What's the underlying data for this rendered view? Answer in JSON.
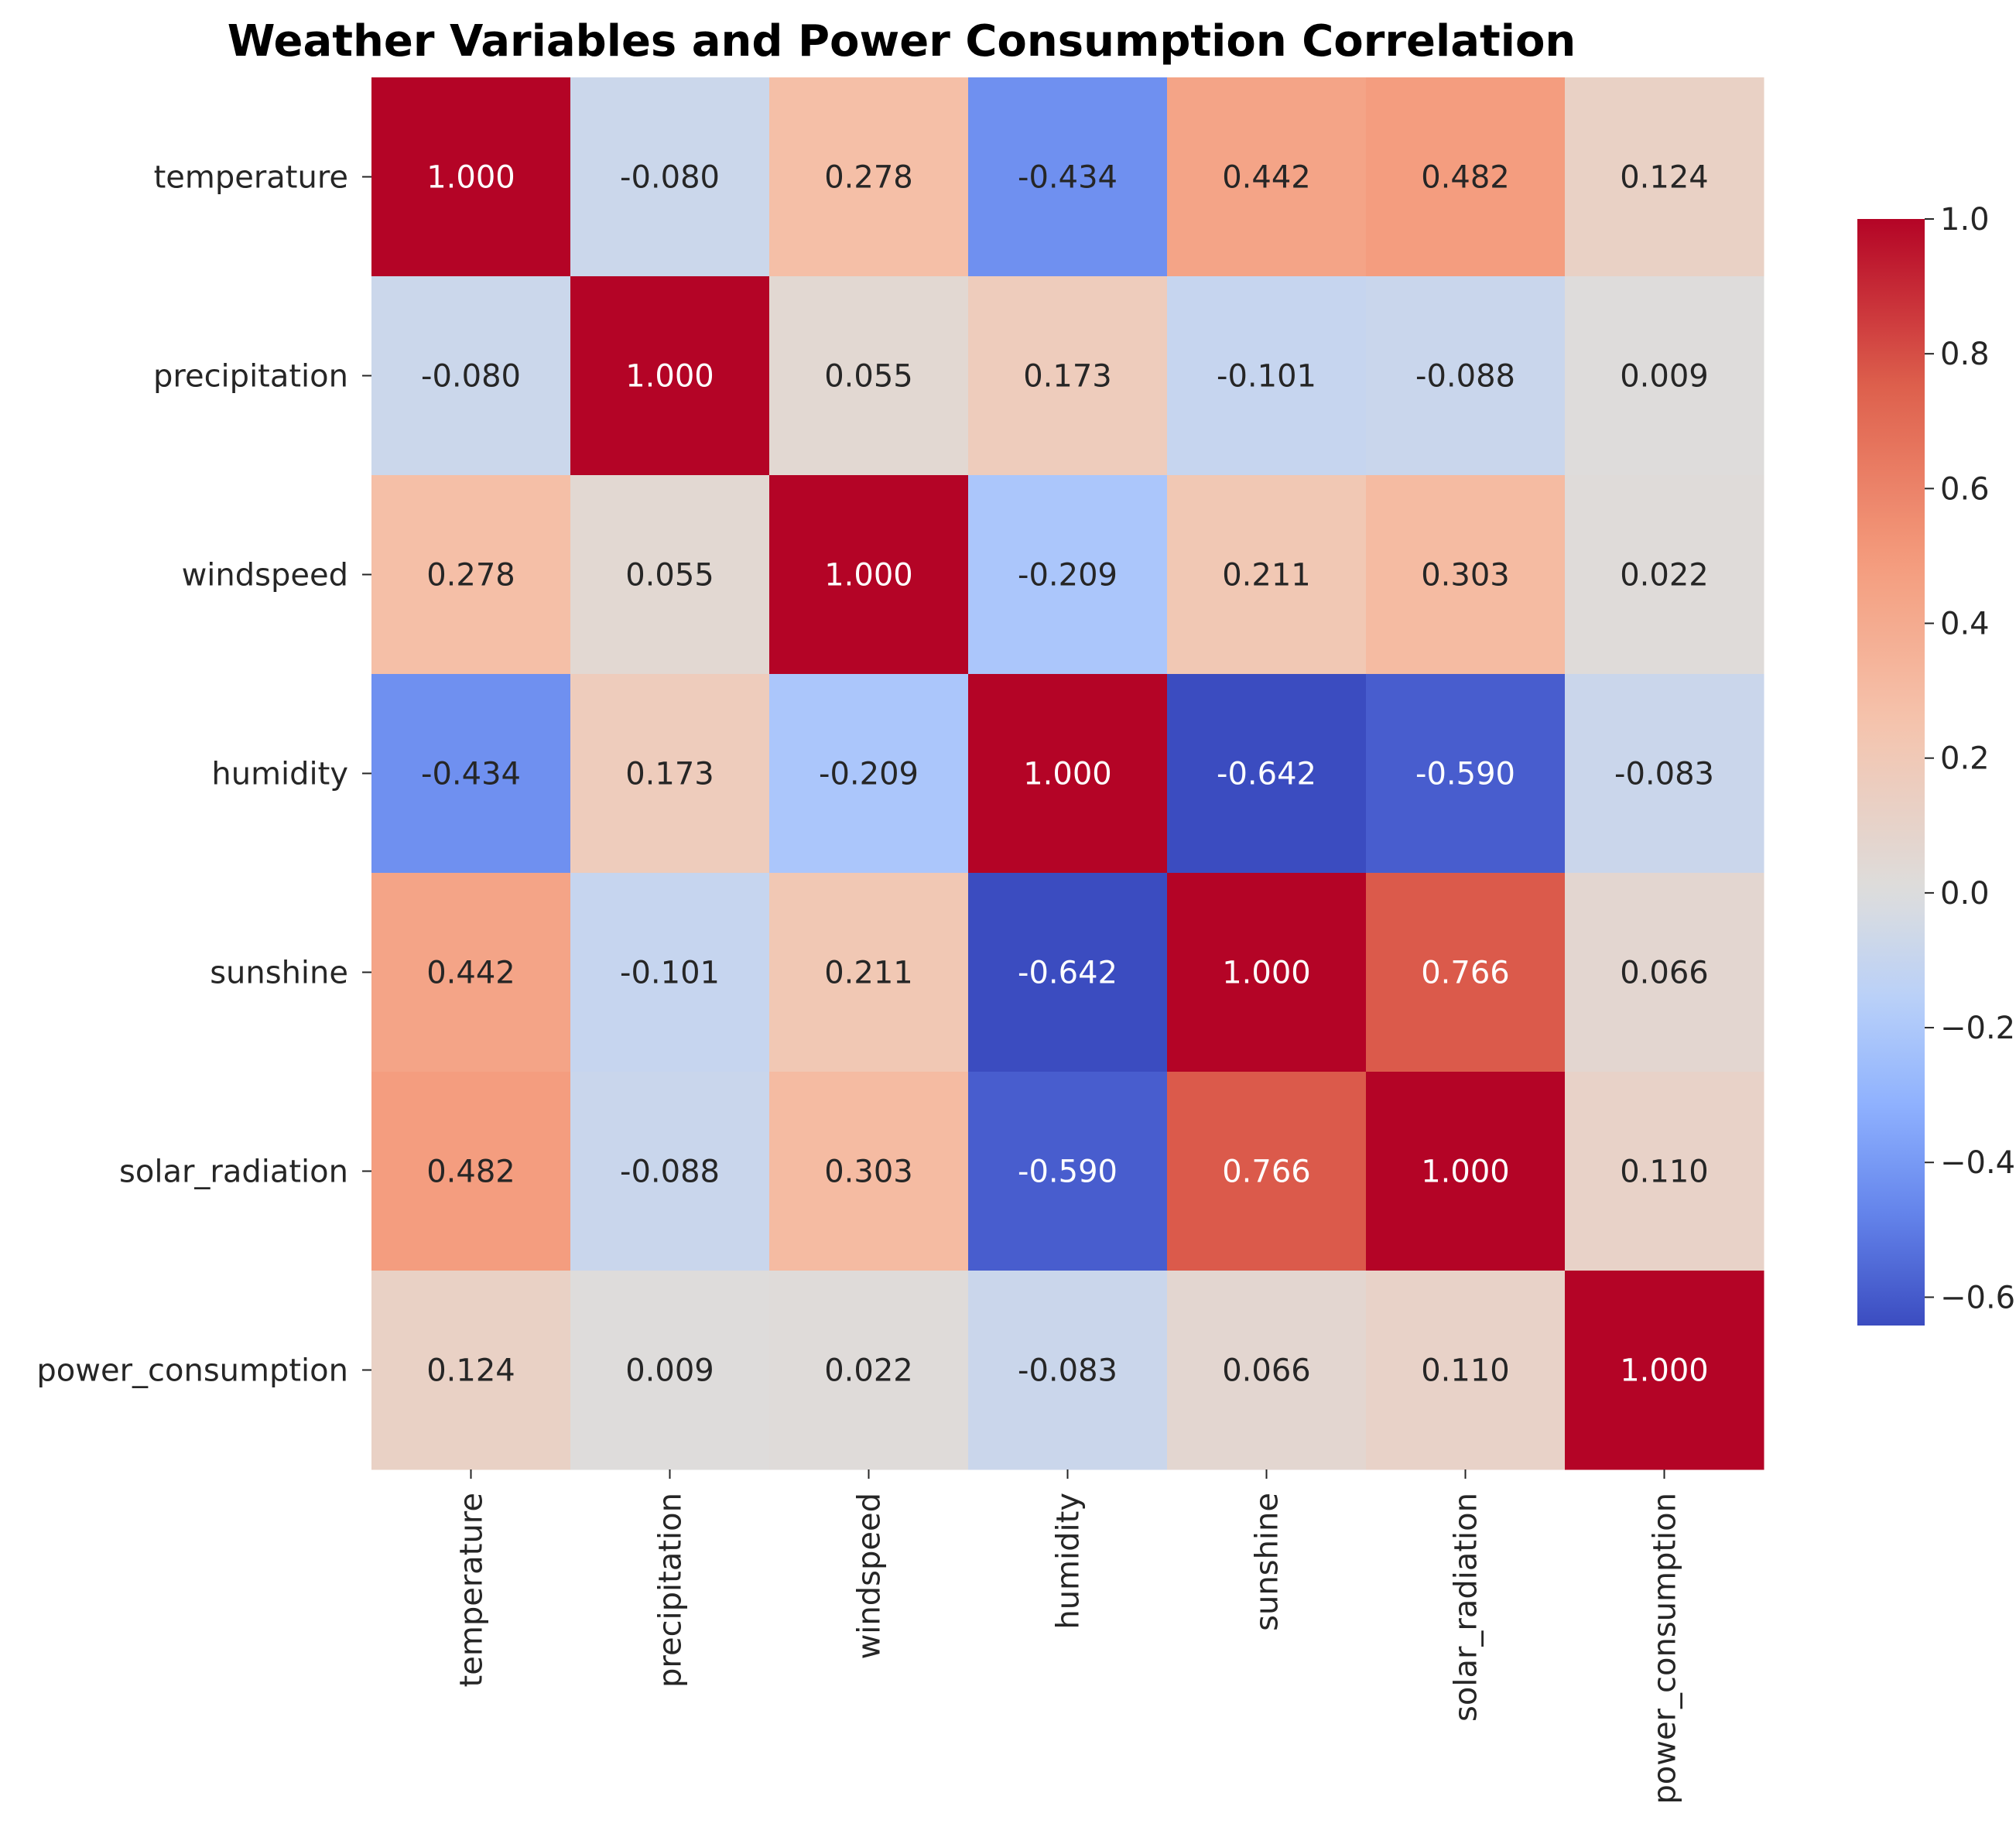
{
  "chart_data": {
    "type": "heatmap",
    "title": "Weather Variables and Power Consumption Correlation",
    "xlabel": "",
    "ylabel": "",
    "variables": [
      "temperature",
      "precipitation",
      "windspeed",
      "humidity",
      "sunshine",
      "solar_radiation",
      "power_consumption"
    ],
    "matrix": [
      [
        1.0,
        -0.08,
        0.278,
        -0.434,
        0.442,
        0.482,
        0.124
      ],
      [
        -0.08,
        1.0,
        0.055,
        0.173,
        -0.101,
        -0.088,
        0.009
      ],
      [
        0.278,
        0.055,
        1.0,
        -0.209,
        0.211,
        0.303,
        0.022
      ],
      [
        -0.434,
        0.173,
        -0.209,
        1.0,
        -0.642,
        -0.59,
        -0.083
      ],
      [
        0.442,
        -0.101,
        0.211,
        -0.642,
        1.0,
        0.766,
        0.066
      ],
      [
        0.482,
        -0.088,
        0.303,
        -0.59,
        0.766,
        1.0,
        0.11
      ],
      [
        0.124,
        0.009,
        0.022,
        -0.083,
        0.066,
        0.11,
        1.0
      ]
    ],
    "value_format": "0.000",
    "colormap": "coolwarm",
    "colorscale_range": [
      -0.642,
      1.0
    ],
    "colorscale_center": 0.0,
    "colorbar_ticks": [
      1.0,
      0.8,
      0.6,
      0.4,
      0.2,
      0.0,
      -0.2,
      -0.4,
      -0.6
    ],
    "colorbar_tick_labels": [
      "1.0",
      "0.8",
      "0.6",
      "0.4",
      "0.2",
      "0.0",
      "−0.2",
      "−0.4",
      "−0.6"
    ],
    "grid": false,
    "legend": "colorbar-right"
  }
}
